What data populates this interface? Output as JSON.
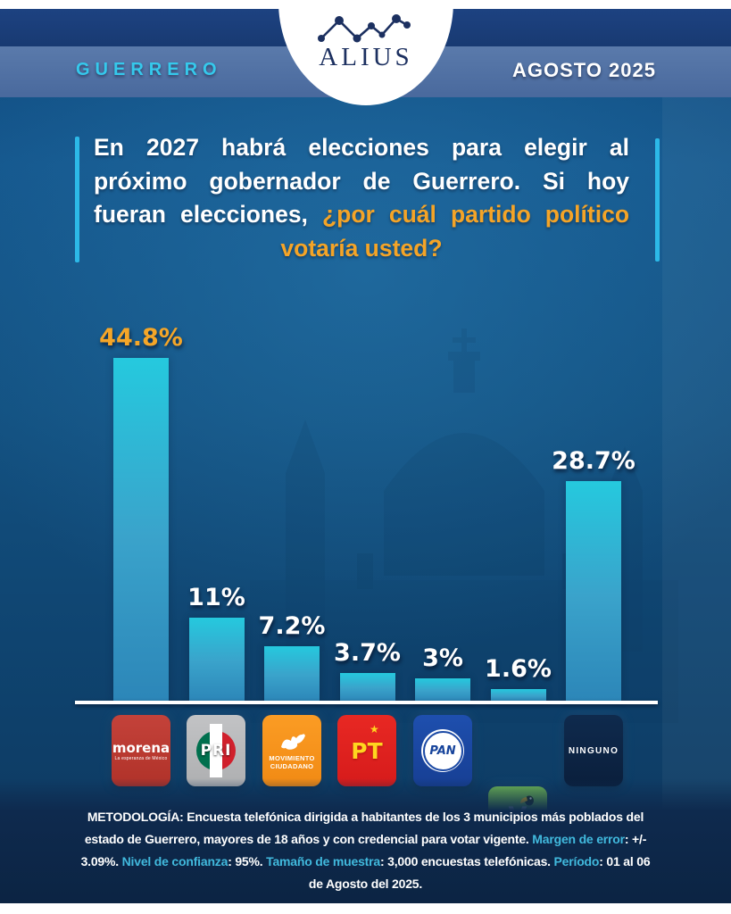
{
  "header": {
    "brand": "ALIUS",
    "location": "GUERRERO",
    "date": "AGOSTO 2025"
  },
  "question": {
    "full_text": "En 2027 habrá elecciones para elegir al próximo gobernador de Guerrero. Si hoy fueran elecciones, ¿por cuál partido político votaría usted?",
    "segments": [
      {
        "text": "En 2027 habrá elecciones para elegir al próximo ",
        "style": "white"
      },
      {
        "text": "gobernador de Guerrero.",
        "style": "strong"
      },
      {
        "text": " Si hoy fueran elecciones, ",
        "style": "white"
      },
      {
        "text": "¿por cuál partido político votaría usted?",
        "style": "accent"
      }
    ]
  },
  "chart_data": {
    "type": "bar",
    "title": "En 2027 habrá elecciones para elegir al próximo gobernador de Guerrero. Si hoy fueran elecciones, ¿por cuál partido político votaría usted?",
    "categories": [
      "Morena",
      "PRI",
      "Movimiento Ciudadano",
      "PT",
      "PAN",
      "Verde",
      "Ninguno"
    ],
    "values": [
      44.8,
      11,
      7.2,
      3.7,
      3,
      1.6,
      28.7
    ],
    "value_labels": [
      "44.8%",
      "11%",
      "7.2%",
      "3.7%",
      "3%",
      "1.6%",
      "28.7%"
    ],
    "label_colors": [
      "#f5a628",
      "#ffffff",
      "#ffffff",
      "#ffffff",
      "#ffffff",
      "#ffffff",
      "#ffffff"
    ],
    "unit": "%",
    "xlabel": "",
    "ylabel": "",
    "ylim": [
      0,
      50
    ],
    "grid": false,
    "legend": "none",
    "bar_color_top": "#25c9de",
    "bar_color_bottom": "#2c86b8"
  },
  "parties": [
    {
      "id": "morena",
      "name": "morena",
      "tagline": "La esperanza de México",
      "tile_color": "#bf3a31"
    },
    {
      "id": "pri",
      "name": "PRI",
      "tile_color": "#b9babc"
    },
    {
      "id": "mc",
      "name_line1": "MOVIMIENTO",
      "name_line2": "CIUDADANO",
      "tile_color": "#f8941d"
    },
    {
      "id": "pt",
      "name": "PT",
      "tile_color": "#e42320"
    },
    {
      "id": "pan",
      "name": "PAN",
      "tile_color": "#1c4aa5"
    },
    {
      "id": "verde",
      "name": "VERDE",
      "tile_color": "#6abf4b"
    },
    {
      "id": "ninguno",
      "name": "NINGUNO",
      "tile_color": "#0d2444"
    }
  ],
  "methodology": {
    "segments": [
      {
        "text": "METODOLOGÍA: ",
        "style": "methstrong"
      },
      {
        "text": "Encuesta telefónica dirigida a habitantes de los 3 municipios más poblados del estado de Guerrero, mayores de 18 años y con credencial para votar vigente. ",
        "style": "white"
      },
      {
        "text": "Margen de error",
        "style": "cyan"
      },
      {
        "text": ": +/- 3.09%. ",
        "style": "white"
      },
      {
        "text": "Nivel de confianza",
        "style": "cyan"
      },
      {
        "text": ": 95%. ",
        "style": "white"
      },
      {
        "text": "Tamaño de muestra",
        "style": "cyan"
      },
      {
        "text": ": 3,000 encuestas telefónicas. ",
        "style": "white"
      },
      {
        "text": "Período",
        "style": "cyan"
      },
      {
        "text": ": 01 al 06 de Agosto del 2025.",
        "style": "white"
      }
    ]
  }
}
